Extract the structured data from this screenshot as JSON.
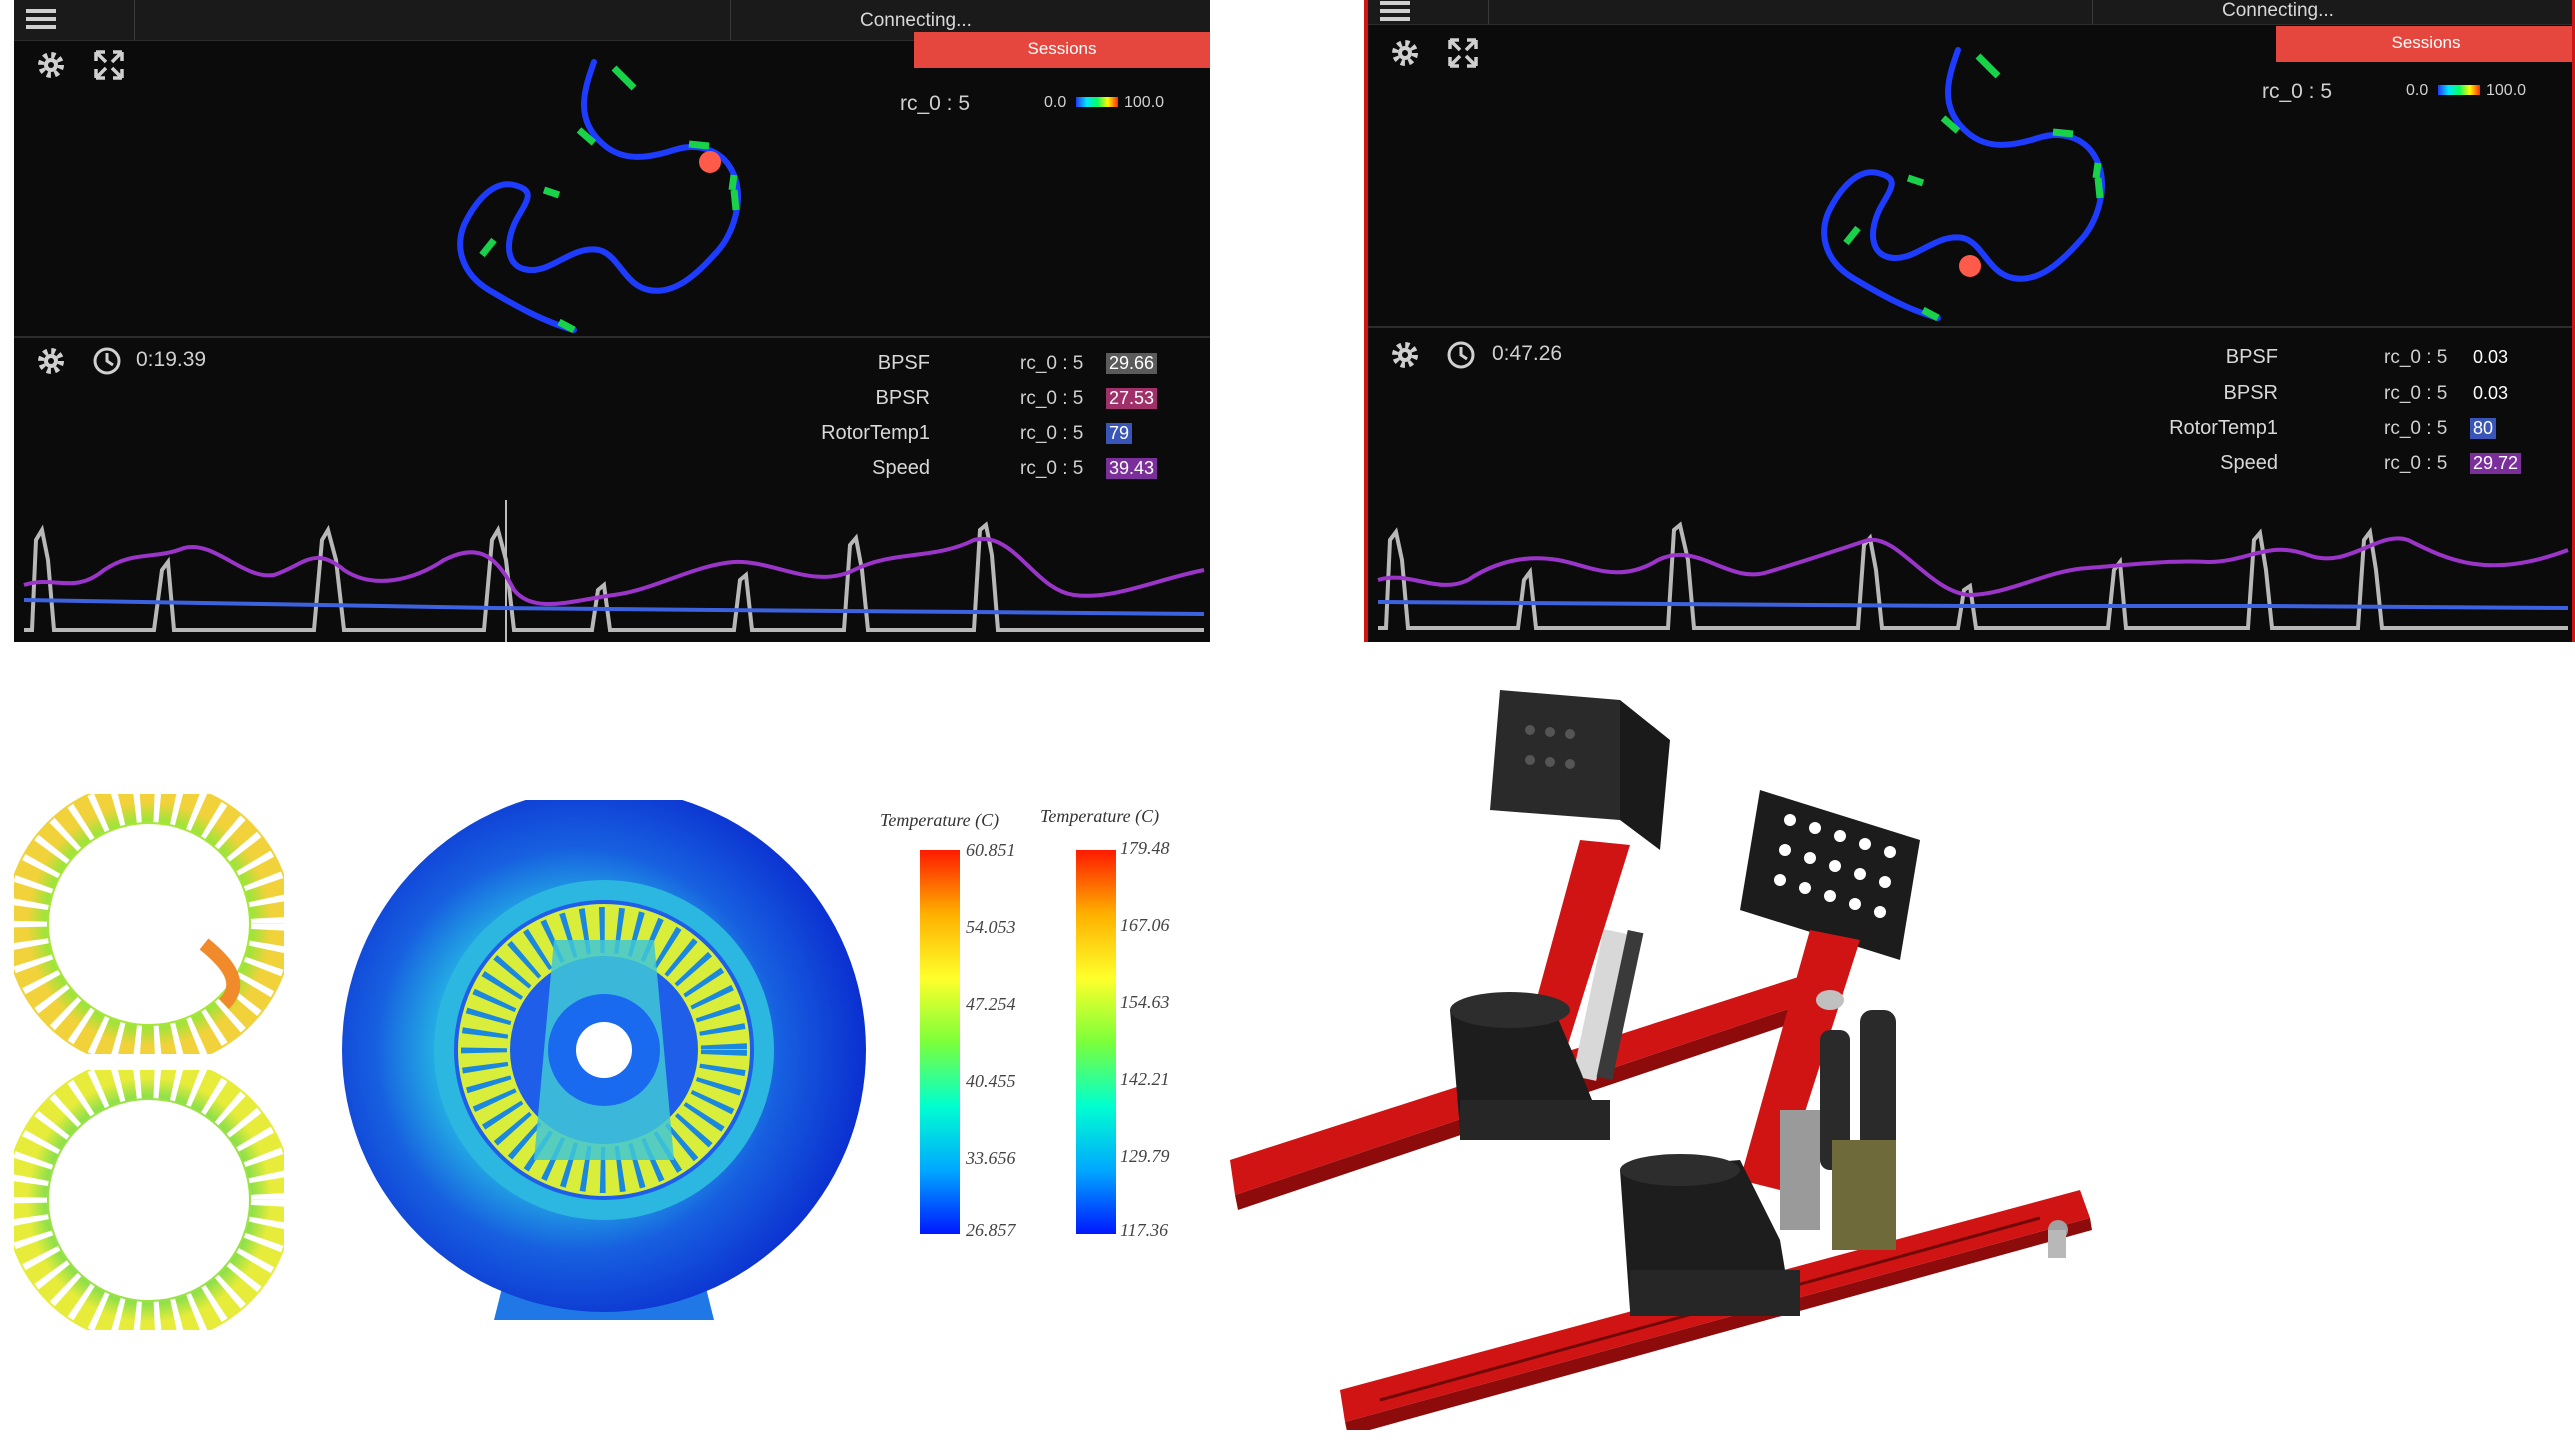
{
  "panels": [
    {
      "status": "Connecting...",
      "sessions_label": "Sessions",
      "track_label": "rc_0 : 5",
      "legend_min": "0.0",
      "legend_max": "100.0",
      "elapsed_time": "0:19.39",
      "channels": [
        {
          "name": "BPSF",
          "source": "rc_0 : 5",
          "value": "29.66",
          "color": "#5b5b5b"
        },
        {
          "name": "BPSR",
          "source": "rc_0 : 5",
          "value": "27.53",
          "color": "#a0306a"
        },
        {
          "name": "RotorTemp1",
          "source": "rc_0 : 5",
          "value": "79",
          "color": "#3a55b8"
        },
        {
          "name": "Speed",
          "source": "rc_0 : 5",
          "value": "39.43",
          "color": "#7a2f9a"
        }
      ]
    },
    {
      "status": "Connecting...",
      "sessions_label": "Sessions",
      "track_label": "rc_0 : 5",
      "legend_min": "0.0",
      "legend_max": "100.0",
      "elapsed_time": "0:47.26",
      "channels": [
        {
          "name": "BPSF",
          "source": "rc_0 : 5",
          "value": "0.03",
          "color": ""
        },
        {
          "name": "BPSR",
          "source": "rc_0 : 5",
          "value": "0.03",
          "color": ""
        },
        {
          "name": "RotorTemp1",
          "source": "rc_0 : 5",
          "value": "80",
          "color": "#3a55b8"
        },
        {
          "name": "Speed",
          "source": "rc_0 : 5",
          "value": "29.72",
          "color": "#7a2f9a"
        }
      ]
    }
  ],
  "thermal": {
    "scales": [
      {
        "title": "Temperature (C)",
        "ticks": [
          "60.851",
          "54.053",
          "47.254",
          "40.455",
          "33.656",
          "26.857"
        ]
      },
      {
        "title": "Temperature (C)",
        "ticks": [
          "179.48",
          "167.06",
          "154.63",
          "142.21",
          "129.79",
          "117.36"
        ]
      }
    ]
  },
  "colors": {
    "panel_bg": "#0b0b0b",
    "sessions_button": "#e5473e",
    "track_line": "#1e3cff",
    "track_hotspot": "#19d24a",
    "car_marker": "#ff5a4a",
    "trace_purple": "#9b35c9",
    "trace_blue": "#3d62e0",
    "trace_gray": "#b8b8b8",
    "frame_red": "#d21414"
  }
}
